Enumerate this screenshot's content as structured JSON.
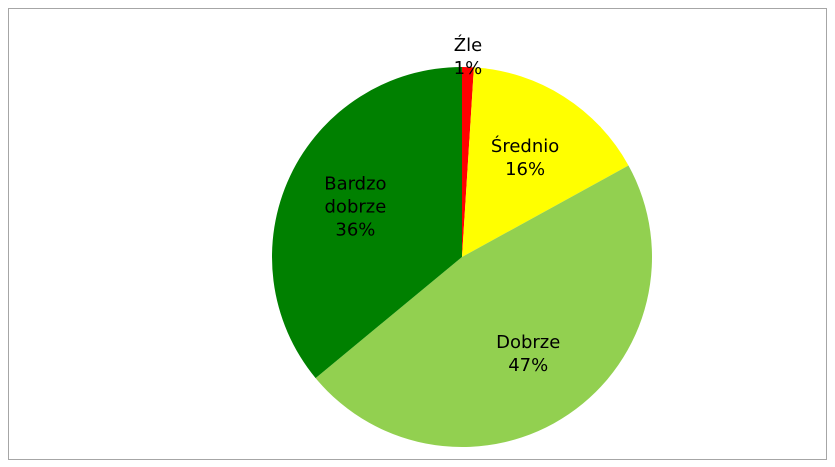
{
  "chart_data": {
    "type": "pie",
    "categories": [
      "Źle",
      "Średnio",
      "Dobrze",
      "Bardzo dobrze"
    ],
    "values": [
      1,
      16,
      47,
      36
    ],
    "value_labels": [
      "1%",
      "16%",
      "47%",
      "36%"
    ],
    "colors": [
      "#ff0000",
      "#ffff00",
      "#92d050",
      "#008000"
    ]
  }
}
